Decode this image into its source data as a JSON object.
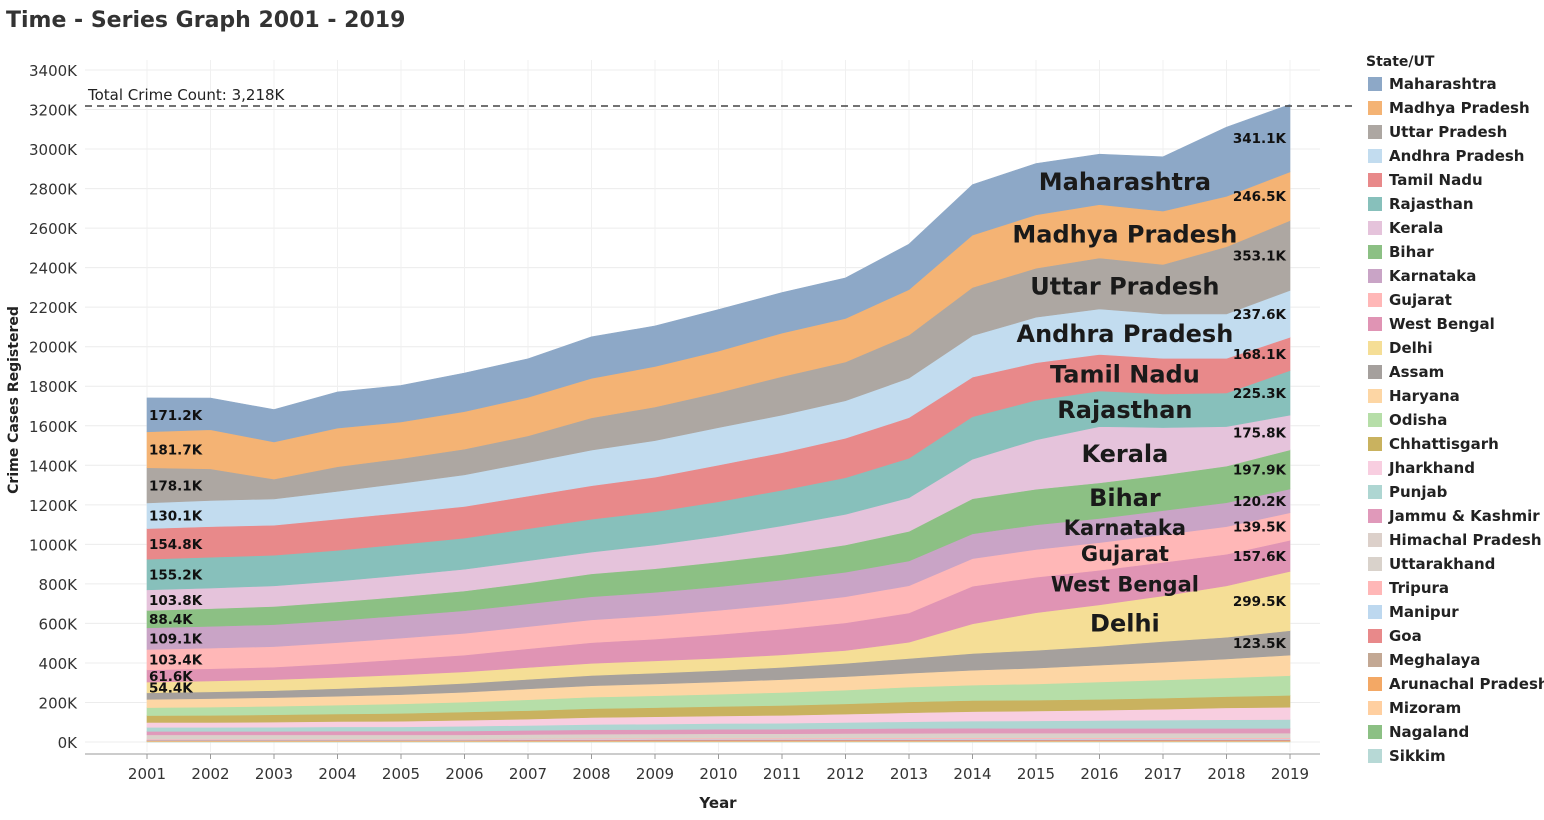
{
  "title": "Time - Series Graph 2001 - 2019",
  "chart_data": {
    "type": "area",
    "stacked": true,
    "title": "Time - Series Graph 2001 - 2019",
    "xlabel": "Year",
    "ylabel": "Crime Cases Registered",
    "x": [
      "2001",
      "2002",
      "2003",
      "2004",
      "2005",
      "2006",
      "2007",
      "2008",
      "2009",
      "2010",
      "2011",
      "2012",
      "2013",
      "2014",
      "2015",
      "2016",
      "2017",
      "2018",
      "2019"
    ],
    "ylim": [
      0,
      3500
    ],
    "y_ticks": [
      0,
      200,
      400,
      600,
      800,
      1000,
      1200,
      1400,
      1600,
      1800,
      2000,
      2200,
      2400,
      2600,
      2800,
      3000,
      3200,
      3400
    ],
    "y_tick_labels": [
      "0K",
      "200K",
      "400K",
      "600K",
      "800K",
      "1000K",
      "1200K",
      "1400K",
      "1600K",
      "1800K",
      "2000K",
      "2200K",
      "2400K",
      "2600K",
      "2800K",
      "3000K",
      "3200K",
      "3400K"
    ],
    "units": "thousands",
    "reference_line": {
      "value": 3218,
      "label": "Total Crime Count: 3,218K"
    },
    "legend_title": "State/UT",
    "legend_position": "right",
    "series": [
      {
        "name": "Sikkim",
        "color": "#b7d9d6",
        "values": [
          1,
          1,
          1,
          1,
          1,
          1,
          1,
          1,
          1,
          1,
          1,
          1,
          1,
          1,
          1,
          1,
          1,
          1,
          1
        ]
      },
      {
        "name": "Nagaland",
        "color": "#8cc084",
        "values": [
          1,
          1,
          1,
          1,
          1,
          1,
          1,
          1,
          1,
          1,
          1,
          1,
          1,
          1,
          1,
          1,
          1,
          1,
          1
        ]
      },
      {
        "name": "Mizoram",
        "color": "#ffcfa0",
        "values": [
          2,
          2,
          2,
          2,
          2,
          2,
          2,
          2,
          2,
          2,
          2,
          2,
          2,
          2,
          2,
          2,
          2,
          2,
          2
        ]
      },
      {
        "name": "Arunachal Pradesh",
        "color": "#f3a865",
        "values": [
          2,
          2,
          2,
          2,
          2,
          2,
          2,
          2,
          2,
          2,
          2,
          2,
          2,
          2,
          2,
          2,
          2,
          2,
          2
        ]
      },
      {
        "name": "Meghalaya",
        "color": "#c3a894",
        "values": [
          2,
          2,
          2,
          2,
          2,
          2,
          2,
          2,
          3,
          3,
          3,
          3,
          3,
          3,
          3,
          3,
          3,
          3,
          3
        ]
      },
      {
        "name": "Goa",
        "color": "#e8898a",
        "values": [
          2,
          2,
          2,
          2,
          2,
          2,
          3,
          3,
          3,
          3,
          3,
          3,
          3,
          3,
          3,
          3,
          3,
          3,
          3
        ]
      },
      {
        "name": "Manipur",
        "color": "#bdd8ef",
        "values": [
          3,
          3,
          3,
          3,
          3,
          3,
          3,
          3,
          3,
          3,
          3,
          4,
          4,
          4,
          4,
          4,
          4,
          4,
          4
        ]
      },
      {
        "name": "Tripura",
        "color": "#ffb7b7",
        "values": [
          4,
          4,
          4,
          4,
          4,
          4,
          4,
          5,
          5,
          5,
          5,
          5,
          5,
          5,
          5,
          5,
          5,
          5,
          5
        ]
      },
      {
        "name": "Uttarakhand",
        "color": "#d9d2cb",
        "values": [
          7,
          7,
          7,
          7,
          7,
          7,
          8,
          8,
          8,
          9,
          9,
          9,
          9,
          10,
          10,
          10,
          10,
          10,
          10
        ]
      },
      {
        "name": "Himachal Pradesh",
        "color": "#dcd0ca",
        "values": [
          12,
          12,
          12,
          12,
          12,
          12,
          12,
          13,
          13,
          13,
          13,
          13,
          14,
          14,
          14,
          14,
          14,
          14,
          14
        ]
      },
      {
        "name": "Jammu & Kashmir",
        "color": "#e099ba",
        "values": [
          18,
          18,
          18,
          19,
          19,
          20,
          21,
          22,
          22,
          23,
          23,
          24,
          25,
          25,
          24,
          24,
          24,
          24,
          24
        ]
      },
      {
        "name": "Punjab",
        "color": "#aed6d2",
        "values": [
          20,
          20,
          21,
          22,
          22,
          24,
          25,
          27,
          28,
          29,
          30,
          32,
          34,
          36,
          38,
          40,
          42,
          44,
          45
        ]
      },
      {
        "name": "Jharkhand",
        "color": "#f8cee0",
        "values": [
          25,
          25,
          26,
          27,
          28,
          30,
          32,
          35,
          37,
          38,
          40,
          42,
          45,
          48,
          50,
          52,
          55,
          60,
          62
        ]
      },
      {
        "name": "Chhattisgarh",
        "color": "#c9b25f",
        "values": [
          35,
          36,
          37,
          38,
          40,
          42,
          43,
          45,
          46,
          48,
          50,
          52,
          55,
          56,
          55,
          55,
          56,
          57,
          60
        ]
      },
      {
        "name": "Odisha",
        "color": "#b6dea8",
        "values": [
          40,
          42,
          43,
          45,
          48,
          50,
          55,
          58,
          60,
          62,
          66,
          70,
          75,
          78,
          82,
          88,
          92,
          95,
          100
        ]
      },
      {
        "name": "Haryana",
        "color": "#fdd6a4",
        "values": [
          42,
          43,
          44,
          45,
          47,
          50,
          55,
          58,
          60,
          62,
          65,
          68,
          70,
          75,
          80,
          85,
          90,
          95,
          104
        ]
      },
      {
        "name": "Assam",
        "color": "#a5a09d",
        "values": [
          33,
          34,
          35,
          38,
          42,
          45,
          48,
          52,
          55,
          58,
          62,
          67,
          75,
          85,
          90,
          95,
          105,
          110,
          123.5
        ]
      },
      {
        "name": "Delhi",
        "color": "#f5de96",
        "values": [
          54.4,
          55,
          56,
          57,
          58,
          58,
          60,
          61,
          62,
          62,
          63,
          65,
          82,
          150,
          190,
          210,
          230,
          260,
          299.5
        ]
      },
      {
        "name": "West Bengal",
        "color": "#e094b4",
        "values": [
          61.6,
          62,
          63,
          70,
          78,
          85,
          95,
          105,
          110,
          120,
          130,
          140,
          148,
          190,
          180,
          175,
          170,
          160,
          157.6
        ]
      },
      {
        "name": "Gujarat",
        "color": "#ffb7b7",
        "values": [
          103.4,
          104,
          104,
          106,
          108,
          110,
          112,
          115,
          118,
          122,
          126,
          132,
          138,
          140,
          140,
          140,
          140,
          140,
          139.5
        ]
      },
      {
        "name": "Karnataka",
        "color": "#c9a4c6",
        "values": [
          109.1,
          110,
          111,
          112,
          113,
          114,
          115,
          117,
          118,
          120,
          122,
          124,
          125,
          125,
          125,
          122,
          122,
          121,
          120.2
        ]
      },
      {
        "name": "Bihar",
        "color": "#8cc084",
        "values": [
          88.4,
          90,
          92,
          94,
          96,
          100,
          106,
          116,
          120,
          125,
          130,
          138,
          150,
          178,
          180,
          180,
          180,
          185,
          197.9
        ]
      },
      {
        "name": "Kerala",
        "color": "#e5c3db",
        "values": [
          103.8,
          104,
          104,
          105,
          108,
          110,
          112,
          110,
          120,
          130,
          145,
          155,
          170,
          200,
          250,
          285,
          240,
          200,
          175.8
        ]
      },
      {
        "name": "Rajasthan",
        "color": "#87c0bb",
        "values": [
          155.2,
          156,
          155,
          156,
          157,
          158,
          162,
          166,
          168,
          175,
          180,
          185,
          200,
          215,
          200,
          180,
          170,
          170,
          225.3
        ]
      },
      {
        "name": "Tamil Nadu",
        "color": "#e8898a",
        "values": [
          154.8,
          155,
          152,
          158,
          159,
          160,
          165,
          170,
          175,
          185,
          190,
          200,
          205,
          200,
          190,
          185,
          180,
          175,
          168.1
        ]
      },
      {
        "name": "Andhra Pradesh",
        "color": "#c2dcef",
        "values": [
          130.1,
          132,
          133,
          140,
          150,
          160,
          170,
          180,
          185,
          190,
          190,
          190,
          200,
          210,
          230,
          230,
          225,
          225,
          237.6
        ]
      },
      {
        "name": "Uttar Pradesh",
        "color": "#ada7a2",
        "values": [
          178.1,
          160,
          100,
          125,
          125,
          130,
          135,
          163,
          170,
          177,
          195,
          196,
          218,
          244,
          248,
          258,
          250,
          340,
          353.1
        ]
      },
      {
        "name": "Madhya Pradesh",
        "color": "#f4b374",
        "values": [
          181.7,
          198,
          188,
          195,
          185,
          190,
          195,
          200,
          205,
          210,
          220,
          220,
          230,
          265,
          270,
          270,
          270,
          255,
          246.5
        ]
      },
      {
        "name": "Maharashtra",
        "color": "#8da8c7",
        "values": [
          171.2,
          160,
          164,
          183,
          185,
          195,
          195,
          210,
          205,
          210,
          205,
          205,
          230,
          255,
          260,
          255,
          275,
          350,
          341.1
        ]
      }
    ],
    "value_labels_2001": [
      {
        "series": "Maharashtra",
        "text": "171.2K"
      },
      {
        "series": "Madhya Pradesh",
        "text": "181.7K"
      },
      {
        "series": "Uttar Pradesh",
        "text": "178.1K"
      },
      {
        "series": "Andhra Pradesh",
        "text": "130.1K"
      },
      {
        "series": "Tamil Nadu",
        "text": "154.8K"
      },
      {
        "series": "Rajasthan",
        "text": "155.2K"
      },
      {
        "series": "Kerala",
        "text": "103.8K"
      },
      {
        "series": "Bihar",
        "text": "88.4K"
      },
      {
        "series": "Karnataka",
        "text": "109.1K"
      },
      {
        "series": "Gujarat",
        "text": "103.4K"
      },
      {
        "series": "West Bengal",
        "text": "61.6K"
      },
      {
        "series": "Delhi",
        "text": "54.4K"
      }
    ],
    "value_labels_2019": [
      {
        "series": "Maharashtra",
        "text": "341.1K"
      },
      {
        "series": "Madhya Pradesh",
        "text": "246.5K"
      },
      {
        "series": "Uttar Pradesh",
        "text": "353.1K"
      },
      {
        "series": "Andhra Pradesh",
        "text": "237.6K"
      },
      {
        "series": "Tamil Nadu",
        "text": "168.1K"
      },
      {
        "series": "Rajasthan",
        "text": "225.3K"
      },
      {
        "series": "Kerala",
        "text": "175.8K"
      },
      {
        "series": "Bihar",
        "text": "197.9K"
      },
      {
        "series": "Karnataka",
        "text": "120.2K"
      },
      {
        "series": "Gujarat",
        "text": "139.5K"
      },
      {
        "series": "West Bengal",
        "text": "157.6K"
      },
      {
        "series": "Delhi",
        "text": "299.5K"
      },
      {
        "series": "Assam",
        "text": "123.5K"
      }
    ],
    "area_labels": [
      "Maharashtra",
      "Madhya Pradesh",
      "Uttar Pradesh",
      "Andhra Pradesh",
      "Tamil Nadu",
      "Rajasthan",
      "Kerala",
      "Bihar",
      "Karnataka",
      "Gujarat",
      "West Bengal",
      "Delhi"
    ],
    "legend_order": [
      "Maharashtra",
      "Madhya Pradesh",
      "Uttar Pradesh",
      "Andhra Pradesh",
      "Tamil Nadu",
      "Rajasthan",
      "Kerala",
      "Bihar",
      "Karnataka",
      "Gujarat",
      "West Bengal",
      "Delhi",
      "Assam",
      "Haryana",
      "Odisha",
      "Chhattisgarh",
      "Jharkhand",
      "Punjab",
      "Jammu & Kashmir",
      "Himachal Pradesh",
      "Uttarakhand",
      "Tripura",
      "Manipur",
      "Goa",
      "Meghalaya",
      "Arunachal Pradesh",
      "Mizoram",
      "Nagaland",
      "Sikkim"
    ]
  }
}
